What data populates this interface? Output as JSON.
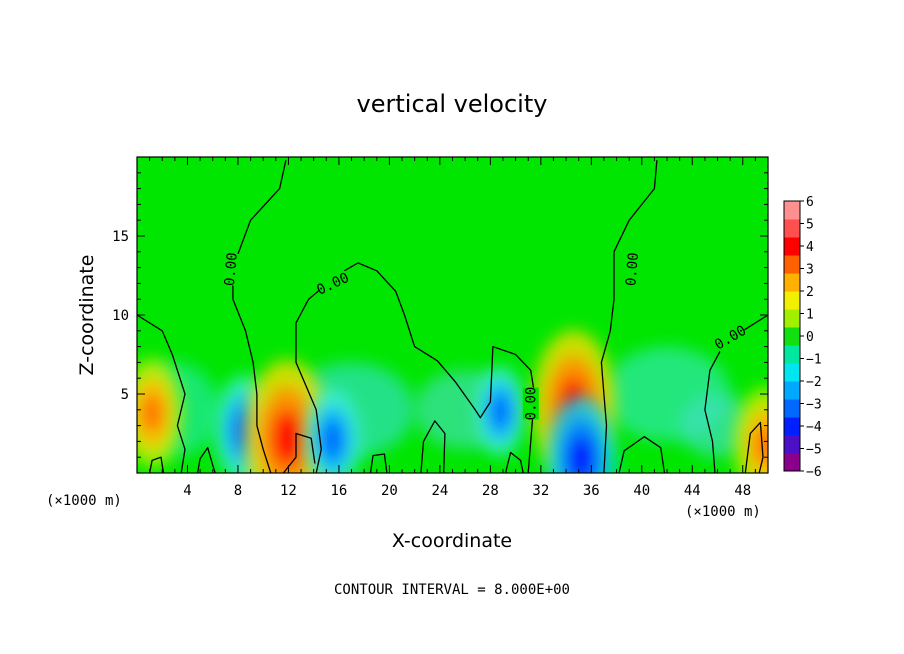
{
  "chart_data": {
    "type": "heatmap",
    "title": "vertical velocity",
    "xlabel": "X-coordinate",
    "ylabel": "Z-coordinate",
    "x_unit_left": "(×1000 m)",
    "x_unit_right": "(×1000 m)",
    "footer": "CONTOUR INTERVAL = 8.000E+00",
    "xlim": [
      0,
      50
    ],
    "ylim": [
      0,
      20
    ],
    "x_ticks": [
      "4",
      "8",
      "12",
      "16",
      "20",
      "24",
      "28",
      "32",
      "36",
      "40",
      "44",
      "48"
    ],
    "y_ticks": [
      "5",
      "10",
      "15"
    ],
    "grid": false,
    "colorbar": {
      "placement": "right",
      "labels": [
        "6",
        "5",
        "4",
        "3",
        "2",
        "1",
        "0",
        "−1",
        "−2",
        "−3",
        "−4",
        "−5",
        "−6"
      ],
      "colors": [
        "#8b008b",
        "#4b0fc8",
        "#0020ff",
        "#0068ff",
        "#00a8ff",
        "#00e6f0",
        "#00e8a0",
        "#10e010",
        "#a0f000",
        "#f0f000",
        "#ffb000",
        "#ff6000",
        "#ff0000",
        "#ff5050",
        "#ff9090"
      ]
    },
    "contour_label": "0.00",
    "features": [
      {
        "x": 1.2,
        "z": 3.8,
        "w": 2.8
      },
      {
        "x": 8.5,
        "z": 2.7,
        "w": -2.8
      },
      {
        "x": 11.9,
        "z": 2.2,
        "w": 4.8
      },
      {
        "x": 15.5,
        "z": 2.1,
        "w": -2.5
      },
      {
        "x": 28.8,
        "z": 3.9,
        "w": -2.0
      },
      {
        "x": 34.6,
        "z": 4.3,
        "w": 4.5
      },
      {
        "x": 35.2,
        "z": 0.9,
        "w": -3.5
      },
      {
        "x": 49.8,
        "z": 1.8,
        "w": 3.0
      }
    ]
  }
}
